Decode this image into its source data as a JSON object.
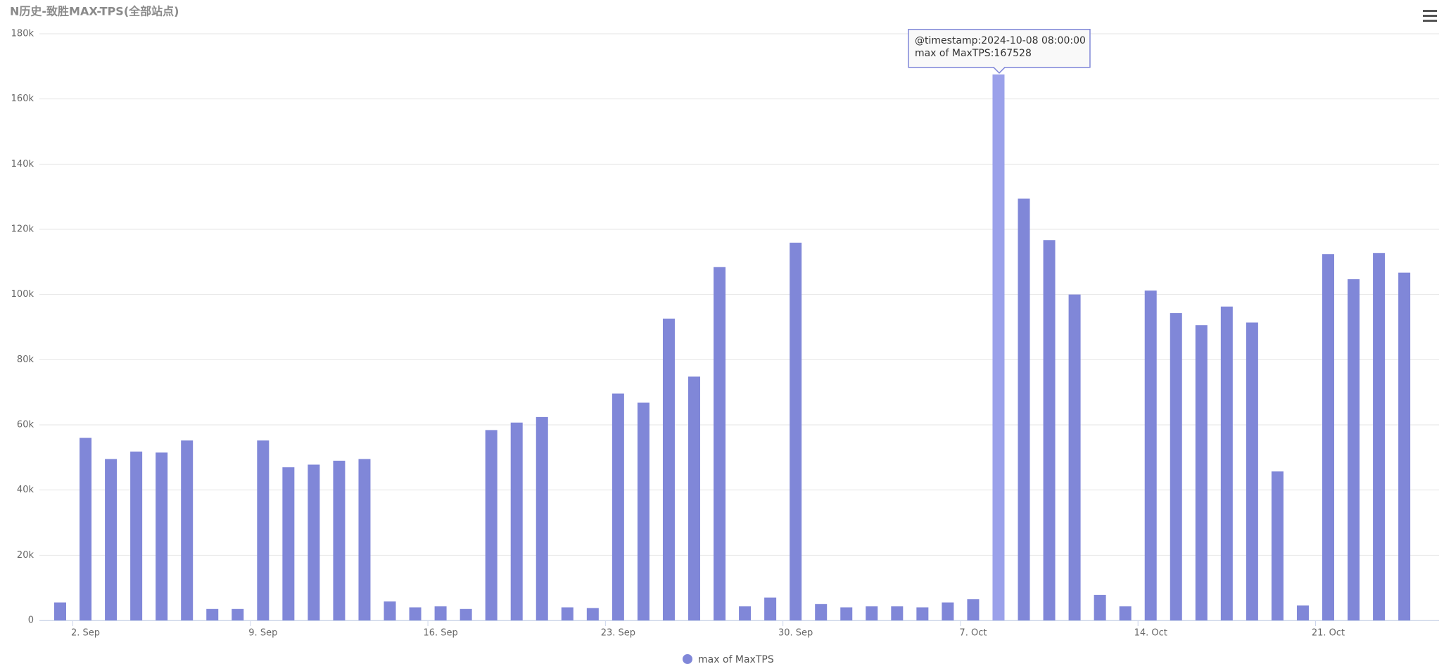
{
  "chart_data": {
    "type": "bar",
    "title": "N历史-致胜MAX-TPS(全部站点)",
    "categories": [
      null,
      "2. Sep",
      null,
      null,
      null,
      null,
      null,
      null,
      "9. Sep",
      null,
      null,
      null,
      null,
      null,
      null,
      "16. Sep",
      null,
      null,
      null,
      null,
      null,
      null,
      "23. Sep",
      null,
      null,
      null,
      null,
      null,
      null,
      "30. Sep",
      null,
      null,
      null,
      null,
      null,
      null,
      "7. Oct",
      null,
      null,
      null,
      null,
      null,
      null,
      "14. Oct",
      null,
      null,
      null,
      null,
      null,
      null,
      "21. Oct",
      null,
      null,
      null
    ],
    "series": [
      {
        "name": "max of MaxTPS",
        "color": "#8087d8",
        "hover_color": "#9ba1ea",
        "values": [
          5500,
          56000,
          49500,
          51800,
          51500,
          55200,
          3500,
          3500,
          55200,
          47000,
          47800,
          49000,
          49500,
          5800,
          4000,
          4300,
          3500,
          58400,
          60700,
          62400,
          4000,
          3800,
          69600,
          66800,
          92600,
          74800,
          108400,
          4300,
          7000,
          115900,
          5000,
          4000,
          4300,
          4300,
          4000,
          5500,
          6500,
          167528,
          129400,
          116700,
          100000,
          7800,
          4300,
          101200,
          94300,
          90600,
          96300,
          91400,
          45700,
          4600,
          112400,
          104700,
          112700,
          106700
        ]
      }
    ],
    "hovered_index": 37,
    "tooltip": [
      "@timestamp:2024-10-08 08:00:00",
      "max of MaxTPS:167528"
    ],
    "ylim": [
      0,
      180000
    ],
    "yticks": [
      {
        "value": 0,
        "label": "0"
      },
      {
        "value": 20000,
        "label": "20k"
      },
      {
        "value": 40000,
        "label": "40k"
      },
      {
        "value": 60000,
        "label": "60k"
      },
      {
        "value": 80000,
        "label": "80k"
      },
      {
        "value": 100000,
        "label": "100k"
      },
      {
        "value": 120000,
        "label": "120k"
      },
      {
        "value": 140000,
        "label": "140k"
      },
      {
        "value": 160000,
        "label": "160k"
      },
      {
        "value": 180000,
        "label": "180k"
      }
    ],
    "grid": true
  }
}
